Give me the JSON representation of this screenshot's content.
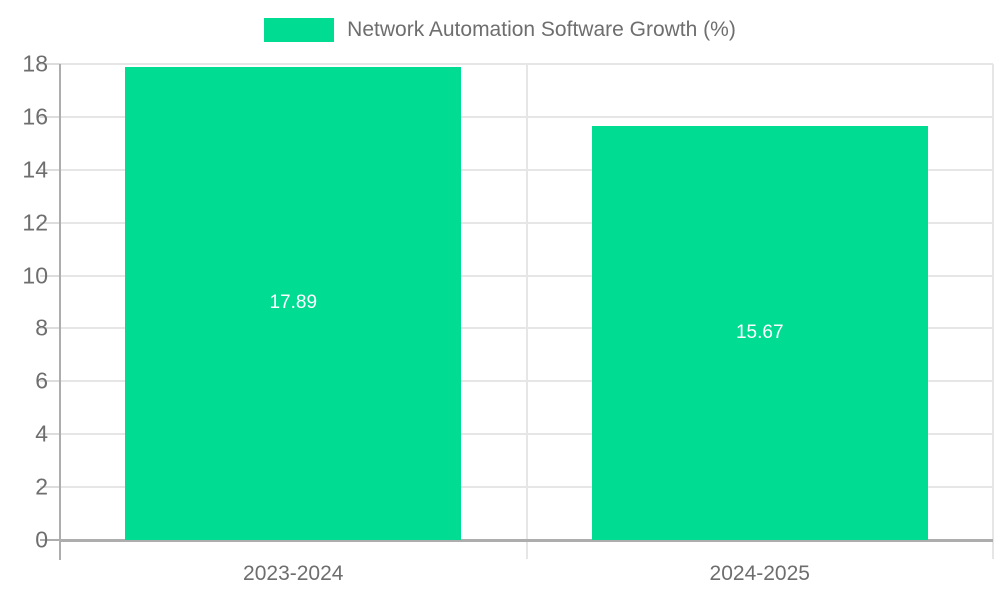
{
  "legend": {
    "label": "Network Automation Software Growth (%)"
  },
  "colors": {
    "bar": "#00DC91",
    "grid": "#e6e6e6",
    "axis": "#adadad",
    "tick": "#dddddd",
    "label_text": "#6e6e6e",
    "value_text": "#ffffff",
    "background": "#ffffff"
  },
  "chart_data": {
    "type": "bar",
    "title": "Network Automation Software Growth (%)",
    "categories": [
      "2023-2024",
      "2024-2025"
    ],
    "series": [
      {
        "name": "Network Automation Software Growth (%)",
        "color": "#00DC91",
        "values": [
          17.89,
          15.67
        ]
      }
    ],
    "value_labels": [
      "17.89",
      "15.67"
    ],
    "xlabel": "",
    "ylabel": "",
    "ylim": [
      0,
      18
    ],
    "yticks": [
      0,
      2,
      4,
      6,
      8,
      10,
      12,
      14,
      16,
      18
    ],
    "grid": true,
    "legend_position": "top",
    "bar_width_fraction": 0.72
  }
}
